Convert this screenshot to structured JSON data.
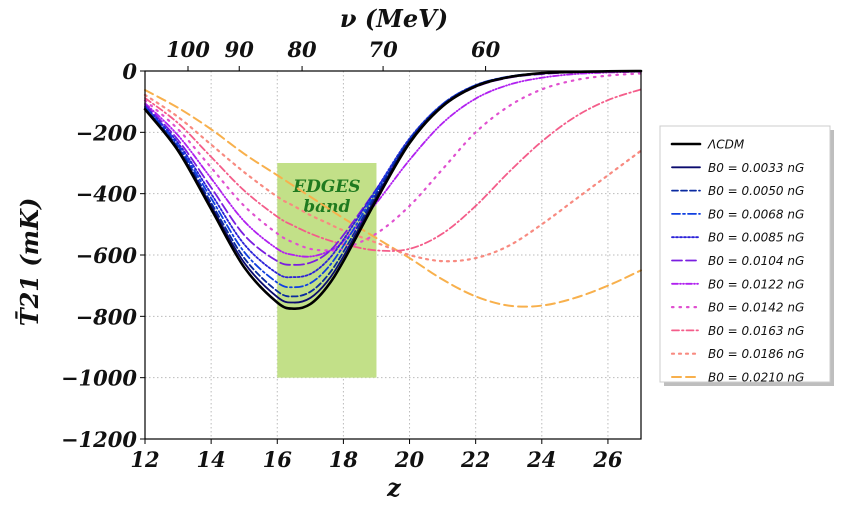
{
  "chart_data": {
    "type": "line",
    "xlabel": "z",
    "ylabel": "T̄21 (mK)",
    "top_axis_label": "ν (MeV)",
    "xlim": [
      12,
      27
    ],
    "ylim": [
      -1200,
      0
    ],
    "x_ticks": [
      12,
      14,
      16,
      18,
      20,
      22,
      24,
      26
    ],
    "y_ticks": [
      0,
      -200,
      -400,
      -600,
      -800,
      -1000,
      -1200
    ],
    "top_ticks": [
      {
        "label": "100",
        "z": 13.3
      },
      {
        "label": "90",
        "z": 14.85
      },
      {
        "label": "80",
        "z": 16.75
      },
      {
        "label": "70",
        "z": 19.2
      },
      {
        "label": "60",
        "z": 22.3
      }
    ],
    "grid": true,
    "legend_position": "right",
    "band": {
      "label_line1": "EDGES",
      "label_line2": "band",
      "x_range": [
        16,
        19
      ],
      "y_range": [
        -1000,
        -300
      ],
      "color": "#c2e088"
    },
    "x": [
      12,
      13,
      14,
      15,
      16,
      16.5,
      17,
      17.5,
      18,
      19,
      20,
      21,
      22,
      23,
      24,
      25,
      26,
      27
    ],
    "series": [
      {
        "name": "ΛCDM",
        "color": "#000000",
        "dash": "solid",
        "width": 2.6,
        "values": [
          -125,
          -260,
          -450,
          -640,
          -755,
          -775,
          -760,
          -705,
          -620,
          -420,
          -235,
          -115,
          -50,
          -20,
          -7,
          -3,
          -1,
          0
        ]
      },
      {
        "name": "B0 = 0.0033 nG",
        "color": "#0b0b6e",
        "dash": "solid",
        "width": 1.8,
        "values": [
          -123,
          -255,
          -440,
          -625,
          -737,
          -755,
          -740,
          -688,
          -605,
          -410,
          -230,
          -112,
          -48,
          -19,
          -7,
          -3,
          -1,
          0
        ]
      },
      {
        "name": "B0 = 0.0050 nG",
        "color": "#0a2aa0",
        "dash": "6,3",
        "width": 1.8,
        "values": [
          -121,
          -250,
          -430,
          -610,
          -718,
          -735,
          -720,
          -670,
          -590,
          -400,
          -225,
          -110,
          -47,
          -19,
          -7,
          -3,
          -1,
          0
        ]
      },
      {
        "name": "B0 = 0.0068 nG",
        "color": "#1040e0",
        "dash": "8,3,2,3",
        "width": 1.8,
        "values": [
          -118,
          -243,
          -415,
          -590,
          -690,
          -705,
          -692,
          -645,
          -570,
          -392,
          -222,
          -108,
          -46,
          -18,
          -7,
          -3,
          -1,
          0
        ]
      },
      {
        "name": "B0 = 0.0085 nG",
        "color": "#2a20d8",
        "dash": "2,2",
        "width": 1.8,
        "values": [
          -115,
          -235,
          -400,
          -565,
          -660,
          -672,
          -662,
          -620,
          -550,
          -385,
          -220,
          -108,
          -46,
          -19,
          -8,
          -3,
          -1,
          0
        ]
      },
      {
        "name": "B0 = 0.0104 nG",
        "color": "#7a1ee0",
        "dash": "10,4",
        "width": 1.8,
        "values": [
          -110,
          -225,
          -380,
          -535,
          -620,
          -632,
          -625,
          -595,
          -535,
          -385,
          -228,
          -115,
          -52,
          -22,
          -10,
          -4,
          -2,
          -1
        ]
      },
      {
        "name": "B0 = 0.0122 nG",
        "color": "#b020f0",
        "dash": "6,2,1,2,1,2",
        "width": 1.8,
        "values": [
          -105,
          -210,
          -350,
          -490,
          -580,
          -600,
          -605,
          -590,
          -555,
          -430,
          -290,
          -170,
          -90,
          -45,
          -22,
          -10,
          -5,
          -2
        ]
      },
      {
        "name": "B0 = 0.0142 nG",
        "color": "#e050d0",
        "dash": "1.5,6",
        "width": 2.2,
        "values": [
          -96,
          -190,
          -315,
          -440,
          -530,
          -560,
          -580,
          -585,
          -580,
          -530,
          -440,
          -320,
          -200,
          -115,
          -60,
          -30,
          -15,
          -8
        ]
      },
      {
        "name": "B0 = 0.0163 nG",
        "color": "#f45d8a",
        "dash": "7,3,1.5,3",
        "width": 1.8,
        "values": [
          -88,
          -170,
          -280,
          -390,
          -475,
          -505,
          -530,
          -550,
          -565,
          -585,
          -580,
          -530,
          -440,
          -330,
          -230,
          -150,
          -95,
          -60
        ]
      },
      {
        "name": "B0 = 0.0186 nG",
        "color": "#f88a80",
        "dash": "2,5",
        "width": 2.2,
        "values": [
          -78,
          -150,
          -240,
          -330,
          -410,
          -440,
          -470,
          -495,
          -520,
          -560,
          -600,
          -620,
          -610,
          -570,
          -500,
          -420,
          -340,
          -260
        ]
      },
      {
        "name": "B0 = 0.0210 nG",
        "color": "#f8b04c",
        "dash": "9,5",
        "width": 2.0,
        "values": [
          -62,
          -120,
          -190,
          -270,
          -340,
          -375,
          -410,
          -445,
          -480,
          -545,
          -610,
          -680,
          -735,
          -765,
          -765,
          -740,
          -700,
          -650
        ]
      }
    ]
  }
}
